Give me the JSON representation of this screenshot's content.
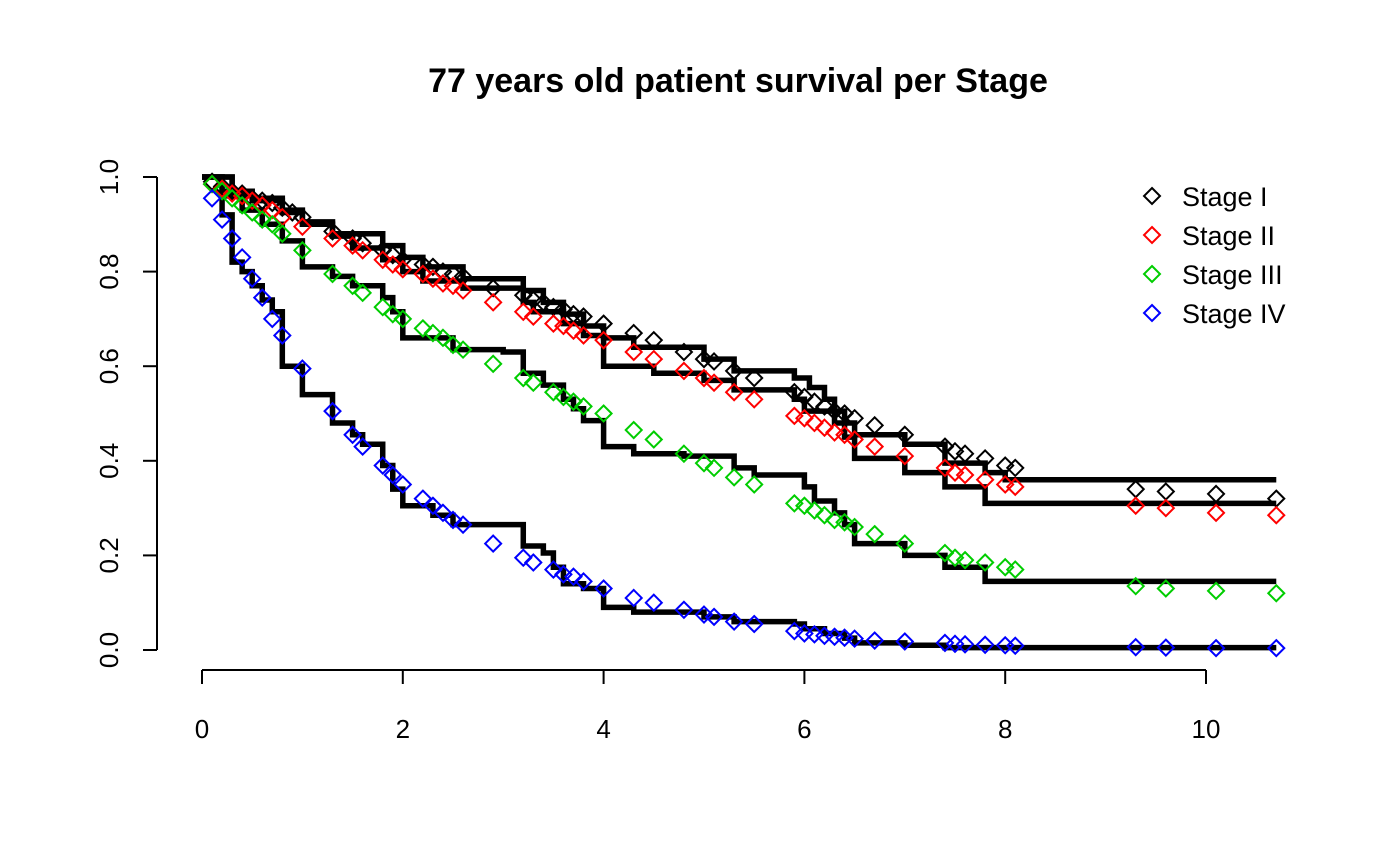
{
  "chart_data": {
    "type": "line",
    "title": "77 years old patient survival per Stage",
    "xlabel": "",
    "ylabel": "",
    "xlim": [
      0,
      10.7
    ],
    "ylim": [
      0,
      1.0
    ],
    "x_ticks": [
      "0",
      "2",
      "4",
      "6",
      "8",
      "10"
    ],
    "x_tick_values": [
      0,
      2,
      4,
      6,
      8,
      10
    ],
    "y_ticks": [
      "0.0",
      "0.2",
      "0.4",
      "0.6",
      "0.8",
      "1.0"
    ],
    "y_tick_values": [
      0,
      0.2,
      0.4,
      0.6,
      0.8,
      1.0
    ],
    "grid": false,
    "legend_position": "top-right",
    "legend": [
      "Stage I",
      "Stage II",
      "Stage III",
      "Stage IV"
    ],
    "step_curves": [
      {
        "series": "Stage I",
        "points": [
          [
            0,
            1.0
          ],
          [
            0.3,
            0.97
          ],
          [
            0.5,
            0.955
          ],
          [
            0.8,
            0.93
          ],
          [
            1.0,
            0.905
          ],
          [
            1.3,
            0.88
          ],
          [
            1.8,
            0.855
          ],
          [
            2.0,
            0.83
          ],
          [
            2.2,
            0.81
          ],
          [
            2.6,
            0.785
          ],
          [
            3.2,
            0.76
          ],
          [
            3.4,
            0.735
          ],
          [
            3.6,
            0.71
          ],
          [
            3.8,
            0.685
          ],
          [
            4.0,
            0.66
          ],
          [
            4.3,
            0.64
          ],
          [
            5.0,
            0.615
          ],
          [
            5.3,
            0.59
          ],
          [
            5.9,
            0.575
          ],
          [
            6.05,
            0.555
          ],
          [
            6.2,
            0.53
          ],
          [
            6.3,
            0.505
          ],
          [
            6.4,
            0.48
          ],
          [
            6.5,
            0.455
          ],
          [
            7.0,
            0.435
          ],
          [
            7.4,
            0.395
          ],
          [
            7.8,
            0.375
          ],
          [
            8.0,
            0.36
          ],
          [
            10.7,
            0.36
          ]
        ]
      },
      {
        "series": "Stage II",
        "points": [
          [
            0,
            1.0
          ],
          [
            0.3,
            0.965
          ],
          [
            0.5,
            0.95
          ],
          [
            0.8,
            0.925
          ],
          [
            1.0,
            0.9
          ],
          [
            1.3,
            0.875
          ],
          [
            1.5,
            0.85
          ],
          [
            1.8,
            0.825
          ],
          [
            2.0,
            0.8
          ],
          [
            2.2,
            0.78
          ],
          [
            2.6,
            0.765
          ],
          [
            3.2,
            0.735
          ],
          [
            3.3,
            0.715
          ],
          [
            3.6,
            0.69
          ],
          [
            3.8,
            0.665
          ],
          [
            4.0,
            0.6
          ],
          [
            4.5,
            0.585
          ],
          [
            5.0,
            0.57
          ],
          [
            5.3,
            0.55
          ],
          [
            5.9,
            0.53
          ],
          [
            6.0,
            0.505
          ],
          [
            6.3,
            0.48
          ],
          [
            6.4,
            0.45
          ],
          [
            6.5,
            0.405
          ],
          [
            7.0,
            0.375
          ],
          [
            7.4,
            0.345
          ],
          [
            7.8,
            0.31
          ],
          [
            10.7,
            0.31
          ]
        ]
      },
      {
        "series": "Stage III",
        "points": [
          [
            0,
            1.0
          ],
          [
            0.2,
            0.96
          ],
          [
            0.4,
            0.93
          ],
          [
            0.6,
            0.9
          ],
          [
            0.8,
            0.865
          ],
          [
            1.0,
            0.835
          ],
          [
            1.0,
            0.81
          ],
          [
            1.3,
            0.79
          ],
          [
            1.5,
            0.77
          ],
          [
            1.8,
            0.745
          ],
          [
            1.9,
            0.715
          ],
          [
            2.0,
            0.69
          ],
          [
            2.0,
            0.66
          ],
          [
            2.5,
            0.635
          ],
          [
            3.0,
            0.63
          ],
          [
            3.2,
            0.585
          ],
          [
            3.4,
            0.56
          ],
          [
            3.6,
            0.53
          ],
          [
            3.7,
            0.51
          ],
          [
            3.8,
            0.485
          ],
          [
            4.0,
            0.43
          ],
          [
            4.3,
            0.415
          ],
          [
            4.8,
            0.41
          ],
          [
            5.3,
            0.385
          ],
          [
            5.5,
            0.37
          ],
          [
            6.0,
            0.345
          ],
          [
            6.1,
            0.315
          ],
          [
            6.3,
            0.29
          ],
          [
            6.4,
            0.265
          ],
          [
            6.5,
            0.225
          ],
          [
            7.0,
            0.2
          ],
          [
            7.4,
            0.175
          ],
          [
            7.8,
            0.145
          ],
          [
            10.7,
            0.145
          ]
        ]
      },
      {
        "series": "Stage IV",
        "points": [
          [
            0,
            1.0
          ],
          [
            0.2,
            0.92
          ],
          [
            0.3,
            0.86
          ],
          [
            0.3,
            0.82
          ],
          [
            0.4,
            0.8
          ],
          [
            0.5,
            0.77
          ],
          [
            0.6,
            0.74
          ],
          [
            0.7,
            0.715
          ],
          [
            0.8,
            0.68
          ],
          [
            0.8,
            0.64
          ],
          [
            0.8,
            0.6
          ],
          [
            1.0,
            0.54
          ],
          [
            1.3,
            0.51
          ],
          [
            1.3,
            0.48
          ],
          [
            1.5,
            0.455
          ],
          [
            1.6,
            0.435
          ],
          [
            1.8,
            0.39
          ],
          [
            1.9,
            0.34
          ],
          [
            2.0,
            0.305
          ],
          [
            2.3,
            0.285
          ],
          [
            2.5,
            0.265
          ],
          [
            3.0,
            0.265
          ],
          [
            3.2,
            0.22
          ],
          [
            3.4,
            0.205
          ],
          [
            3.5,
            0.175
          ],
          [
            3.6,
            0.16
          ],
          [
            3.6,
            0.14
          ],
          [
            3.8,
            0.13
          ],
          [
            4.0,
            0.09
          ],
          [
            4.3,
            0.08
          ],
          [
            5.0,
            0.07
          ],
          [
            5.3,
            0.06
          ],
          [
            5.9,
            0.055
          ],
          [
            6.0,
            0.045
          ],
          [
            6.2,
            0.035
          ],
          [
            6.4,
            0.025
          ],
          [
            6.5,
            0.015
          ],
          [
            7.0,
            0.01
          ],
          [
            7.4,
            0.005
          ],
          [
            10.7,
            0.005
          ]
        ]
      }
    ],
    "series": [
      {
        "name": "Stage I",
        "color": "#000000",
        "marker": "diamond",
        "x": [
          0.1,
          0.2,
          0.3,
          0.4,
          0.5,
          0.6,
          0.7,
          0.8,
          0.9,
          1.0,
          1.3,
          1.5,
          1.6,
          1.8,
          1.9,
          2.0,
          2.2,
          2.3,
          2.4,
          2.5,
          2.6,
          2.9,
          3.2,
          3.3,
          3.4,
          3.5,
          3.6,
          3.7,
          3.8,
          4.0,
          4.3,
          4.5,
          4.8,
          5.0,
          5.1,
          5.3,
          5.5,
          5.9,
          6.0,
          6.1,
          6.2,
          6.3,
          6.4,
          6.5,
          6.7,
          7.0,
          7.4,
          7.5,
          7.6,
          7.8,
          8.0,
          8.1,
          9.3,
          9.6,
          10.1,
          10.7
        ],
        "y": [
          0.99,
          0.98,
          0.97,
          0.965,
          0.955,
          0.95,
          0.945,
          0.935,
          0.925,
          0.915,
          0.885,
          0.87,
          0.86,
          0.845,
          0.835,
          0.825,
          0.815,
          0.81,
          0.8,
          0.795,
          0.79,
          0.765,
          0.75,
          0.74,
          0.735,
          0.725,
          0.72,
          0.71,
          0.705,
          0.69,
          0.67,
          0.655,
          0.63,
          0.615,
          0.61,
          0.59,
          0.575,
          0.545,
          0.535,
          0.525,
          0.515,
          0.505,
          0.5,
          0.49,
          0.475,
          0.455,
          0.43,
          0.42,
          0.415,
          0.405,
          0.39,
          0.385,
          0.34,
          0.335,
          0.33,
          0.32
        ]
      },
      {
        "name": "Stage II",
        "color": "#ff0000",
        "marker": "diamond",
        "x": [
          0.1,
          0.2,
          0.3,
          0.4,
          0.5,
          0.6,
          0.7,
          0.8,
          1.0,
          1.3,
          1.5,
          1.6,
          1.8,
          1.9,
          2.0,
          2.2,
          2.3,
          2.4,
          2.5,
          2.6,
          2.9,
          3.2,
          3.3,
          3.5,
          3.6,
          3.7,
          3.8,
          4.0,
          4.3,
          4.5,
          4.8,
          5.0,
          5.1,
          5.3,
          5.5,
          5.9,
          6.0,
          6.1,
          6.2,
          6.3,
          6.4,
          6.5,
          6.7,
          7.0,
          7.4,
          7.5,
          7.6,
          7.8,
          8.0,
          8.1,
          9.3,
          9.6,
          10.1,
          10.7
        ],
        "y": [
          0.985,
          0.975,
          0.965,
          0.96,
          0.95,
          0.94,
          0.93,
          0.915,
          0.895,
          0.87,
          0.855,
          0.845,
          0.825,
          0.815,
          0.805,
          0.795,
          0.785,
          0.775,
          0.77,
          0.76,
          0.735,
          0.715,
          0.705,
          0.69,
          0.685,
          0.675,
          0.665,
          0.655,
          0.63,
          0.615,
          0.59,
          0.575,
          0.565,
          0.545,
          0.53,
          0.495,
          0.49,
          0.48,
          0.47,
          0.46,
          0.455,
          0.445,
          0.43,
          0.41,
          0.385,
          0.375,
          0.37,
          0.36,
          0.35,
          0.345,
          0.305,
          0.3,
          0.29,
          0.285
        ]
      },
      {
        "name": "Stage III",
        "color": "#00cd00",
        "marker": "diamond",
        "x": [
          0.1,
          0.2,
          0.3,
          0.4,
          0.5,
          0.6,
          0.7,
          0.8,
          1.0,
          1.3,
          1.5,
          1.6,
          1.8,
          1.9,
          2.0,
          2.2,
          2.3,
          2.4,
          2.5,
          2.6,
          2.9,
          3.2,
          3.3,
          3.5,
          3.6,
          3.7,
          3.8,
          4.0,
          4.3,
          4.5,
          4.8,
          5.0,
          5.1,
          5.3,
          5.5,
          5.9,
          6.0,
          6.1,
          6.2,
          6.3,
          6.4,
          6.5,
          6.7,
          7.0,
          7.4,
          7.5,
          7.6,
          7.8,
          8.0,
          8.1,
          9.3,
          9.6,
          10.1,
          10.7
        ],
        "y": [
          0.985,
          0.97,
          0.955,
          0.94,
          0.925,
          0.91,
          0.9,
          0.88,
          0.845,
          0.795,
          0.77,
          0.755,
          0.725,
          0.71,
          0.7,
          0.68,
          0.67,
          0.66,
          0.645,
          0.635,
          0.605,
          0.575,
          0.565,
          0.545,
          0.535,
          0.525,
          0.515,
          0.5,
          0.465,
          0.445,
          0.415,
          0.395,
          0.385,
          0.365,
          0.35,
          0.31,
          0.305,
          0.295,
          0.285,
          0.275,
          0.27,
          0.26,
          0.245,
          0.225,
          0.205,
          0.195,
          0.19,
          0.185,
          0.175,
          0.17,
          0.135,
          0.13,
          0.125,
          0.12
        ]
      },
      {
        "name": "Stage IV",
        "color": "#0000ff",
        "marker": "diamond",
        "x": [
          0.1,
          0.2,
          0.3,
          0.4,
          0.5,
          0.6,
          0.7,
          0.8,
          1.0,
          1.3,
          1.5,
          1.6,
          1.8,
          1.9,
          2.0,
          2.2,
          2.3,
          2.4,
          2.5,
          2.6,
          2.9,
          3.2,
          3.3,
          3.5,
          3.6,
          3.7,
          3.8,
          4.0,
          4.3,
          4.5,
          4.8,
          5.0,
          5.1,
          5.3,
          5.5,
          5.9,
          6.0,
          6.1,
          6.2,
          6.3,
          6.4,
          6.5,
          6.7,
          7.0,
          7.4,
          7.5,
          7.6,
          7.8,
          8.0,
          8.1,
          9.3,
          9.6,
          10.1,
          10.7
        ],
        "y": [
          0.955,
          0.91,
          0.87,
          0.83,
          0.785,
          0.745,
          0.7,
          0.665,
          0.595,
          0.505,
          0.455,
          0.43,
          0.39,
          0.37,
          0.35,
          0.32,
          0.305,
          0.29,
          0.275,
          0.265,
          0.225,
          0.195,
          0.185,
          0.17,
          0.16,
          0.155,
          0.145,
          0.13,
          0.11,
          0.1,
          0.085,
          0.075,
          0.07,
          0.06,
          0.055,
          0.04,
          0.035,
          0.033,
          0.03,
          0.028,
          0.026,
          0.024,
          0.02,
          0.018,
          0.015,
          0.013,
          0.012,
          0.011,
          0.01,
          0.009,
          0.006,
          0.005,
          0.004,
          0.004
        ]
      }
    ]
  }
}
